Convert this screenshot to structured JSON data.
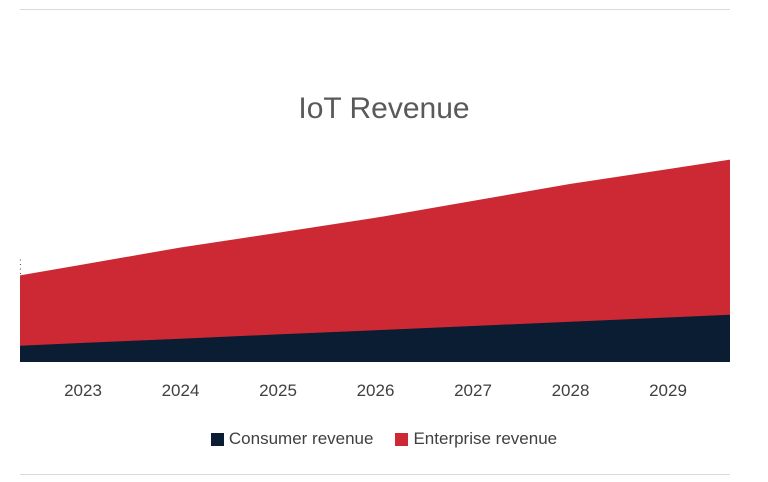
{
  "chart_data": {
    "type": "area",
    "stacked": true,
    "title": "IoT Revenue",
    "xlabel": "",
    "ylabel": "",
    "x": [
      "2023",
      "2024",
      "2025",
      "2026",
      "2027",
      "2028",
      "2029"
    ],
    "ylim": [
      0,
      100
    ],
    "grid": false,
    "legend": "bottom",
    "series": [
      {
        "name": "Consumer revenue",
        "color": "#0b1d33",
        "values": [
          9,
          11,
          13,
          15,
          17,
          19,
          21
        ]
      },
      {
        "name": "Enterprise revenue",
        "color": "#cc2935",
        "values": [
          37,
          43,
          48,
          53,
          59,
          65,
          70
        ]
      }
    ]
  }
}
